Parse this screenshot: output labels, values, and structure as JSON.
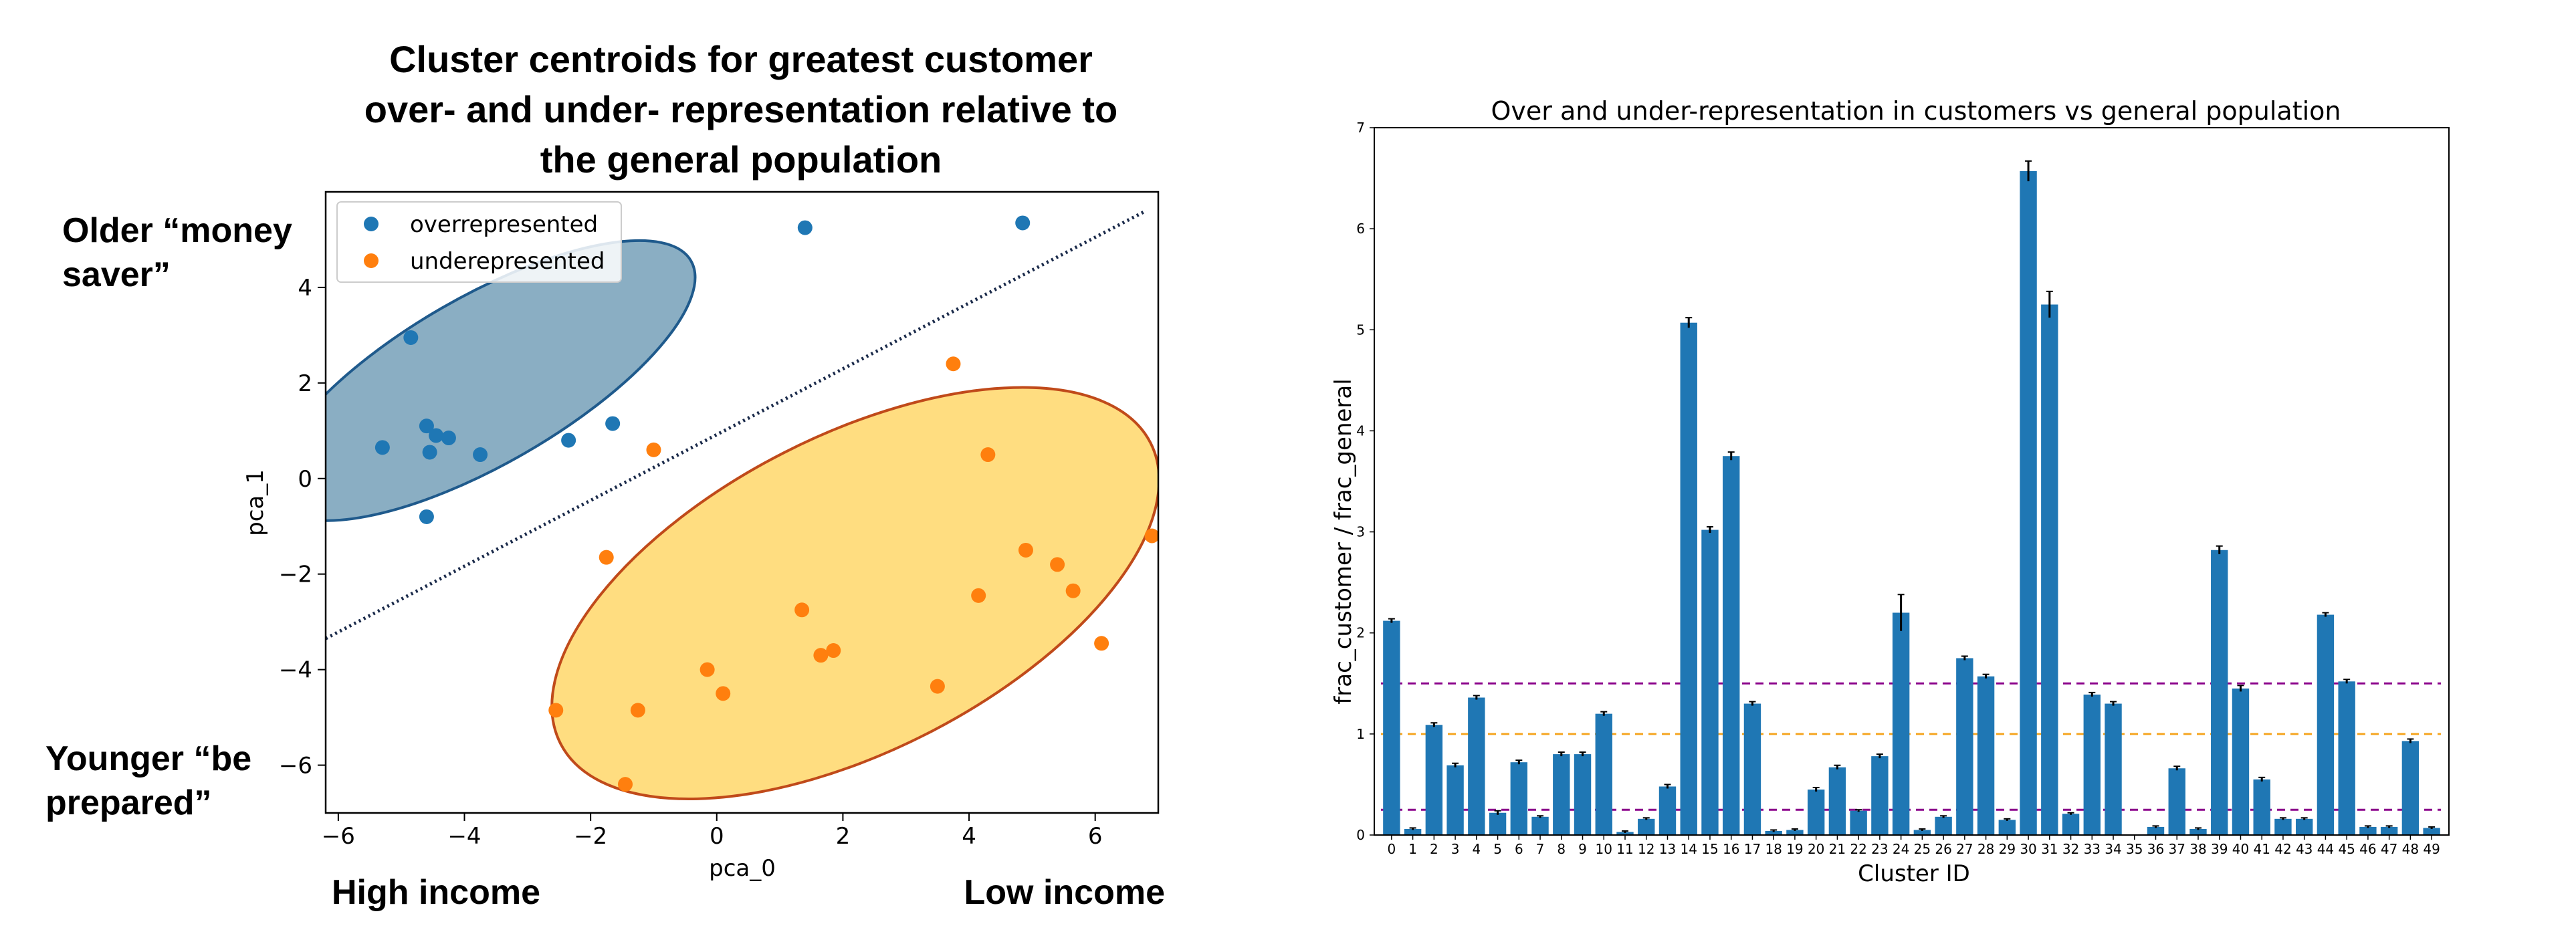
{
  "chart_data": [
    {
      "type": "scatter",
      "title": [
        "Cluster centroids for greatest customer",
        "over- and under- representation relative to",
        "the general population"
      ],
      "xlabel": "pca_0",
      "ylabel": "pca_1",
      "xlim": [
        -6.2,
        7.0
      ],
      "ylim": [
        -7.0,
        6.0
      ],
      "xticks": [
        -6,
        -4,
        -2,
        0,
        2,
        4,
        6
      ],
      "yticks": [
        -6,
        -4,
        -2,
        0,
        2,
        4
      ],
      "grid": false,
      "legend": "top-left",
      "series": [
        {
          "name": "overrepresented",
          "color": "#1f77b4",
          "points": [
            [
              -5.3,
              0.65
            ],
            [
              -4.85,
              2.95
            ],
            [
              -4.6,
              1.1
            ],
            [
              -4.55,
              0.55
            ],
            [
              -4.45,
              0.9
            ],
            [
              -4.25,
              0.85
            ],
            [
              -3.75,
              0.5
            ],
            [
              -4.6,
              -0.8
            ],
            [
              -2.35,
              0.8
            ],
            [
              -1.65,
              1.15
            ],
            [
              1.4,
              5.25
            ],
            [
              4.85,
              5.35
            ]
          ]
        },
        {
          "name": "underepresented",
          "color": "#ff7f0e",
          "points": [
            [
              -1.0,
              0.6
            ],
            [
              3.75,
              2.4
            ],
            [
              4.3,
              0.5
            ],
            [
              -1.75,
              -1.65
            ],
            [
              4.9,
              -1.5
            ],
            [
              5.4,
              -1.8
            ],
            [
              5.65,
              -2.35
            ],
            [
              4.15,
              -2.45
            ],
            [
              6.1,
              -3.45
            ],
            [
              6.9,
              -1.2
            ],
            [
              1.35,
              -2.75
            ],
            [
              1.65,
              -3.7
            ],
            [
              1.85,
              -3.6
            ],
            [
              -0.15,
              -4.0
            ],
            [
              0.1,
              -4.5
            ],
            [
              3.5,
              -4.35
            ],
            [
              -2.55,
              -4.85
            ],
            [
              -1.25,
              -4.85
            ],
            [
              -1.45,
              -6.4
            ]
          ]
        }
      ],
      "annotations": {
        "top_left": [
          "Older “money",
          "saver”"
        ],
        "bottom_left": [
          "Younger “be",
          "prepared”"
        ],
        "x_left": "High income",
        "x_right": "Low income"
      },
      "divider_line": {
        "x": [
          -6.2,
          6.8
        ],
        "y": [
          -3.35,
          5.6
        ],
        "style": "dotted",
        "color": "#1a2a4a"
      },
      "ellipses": [
        {
          "cx": -3.7,
          "cy": 2.05,
          "rx": 3.8,
          "ry": 1.75,
          "angle_deg": 30,
          "fill": "#8aaec3",
          "stroke": "#1f5a8c"
        },
        {
          "cx": 2.2,
          "cy": -2.4,
          "rx": 5.25,
          "ry": 3.3,
          "angle_deg": 27,
          "fill": "#ffdd80",
          "stroke": "#c04a1a"
        }
      ]
    },
    {
      "type": "bar",
      "title": "Over and under-representation in customers vs general population",
      "xlabel": "Cluster ID",
      "ylabel": "frac_customer / frac_general",
      "ylim": [
        0,
        7
      ],
      "yticks": [
        0,
        1,
        2,
        3,
        4,
        5,
        6,
        7
      ],
      "bar_color": "#1f77b4",
      "categories": [
        "0",
        "1",
        "2",
        "3",
        "4",
        "5",
        "6",
        "7",
        "8",
        "9",
        "10",
        "11",
        "12",
        "13",
        "14",
        "15",
        "16",
        "17",
        "18",
        "19",
        "20",
        "21",
        "22",
        "23",
        "24",
        "25",
        "26",
        "27",
        "28",
        "29",
        "30",
        "31",
        "32",
        "33",
        "34",
        "35",
        "36",
        "37",
        "38",
        "39",
        "40",
        "41",
        "42",
        "43",
        "44",
        "45",
        "46",
        "47",
        "48",
        "49"
      ],
      "values": [
        2.12,
        0.06,
        1.09,
        0.69,
        1.36,
        0.22,
        0.72,
        0.18,
        0.8,
        0.8,
        1.2,
        0.03,
        0.16,
        0.48,
        5.07,
        3.02,
        3.75,
        1.3,
        0.04,
        0.05,
        0.45,
        0.67,
        0.24,
        0.78,
        2.2,
        0.05,
        0.18,
        1.75,
        1.57,
        0.15,
        6.57,
        5.25,
        0.21,
        1.39,
        1.3,
        0.0,
        0.08,
        0.66,
        0.06,
        2.82,
        1.45,
        0.55,
        0.16,
        0.16,
        2.18,
        1.52,
        0.08,
        0.08,
        0.93,
        0.07
      ],
      "errors": [
        0.02,
        0.01,
        0.02,
        0.02,
        0.02,
        0.02,
        0.02,
        0.01,
        0.02,
        0.02,
        0.02,
        0.01,
        0.01,
        0.02,
        0.05,
        0.03,
        0.04,
        0.02,
        0.01,
        0.01,
        0.02,
        0.02,
        0.01,
        0.02,
        0.18,
        0.01,
        0.01,
        0.02,
        0.02,
        0.01,
        0.1,
        0.13,
        0.01,
        0.02,
        0.02,
        0.0,
        0.01,
        0.02,
        0.01,
        0.04,
        0.03,
        0.02,
        0.01,
        0.01,
        0.02,
        0.02,
        0.01,
        0.01,
        0.02,
        0.01
      ],
      "reference_lines": [
        {
          "y": 1.5,
          "color": "#8b008b",
          "style": "dashed"
        },
        {
          "y": 1.0,
          "color": "#f5a623",
          "style": "dashed"
        },
        {
          "y": 0.25,
          "color": "#8b008b",
          "style": "dashed"
        }
      ]
    }
  ]
}
